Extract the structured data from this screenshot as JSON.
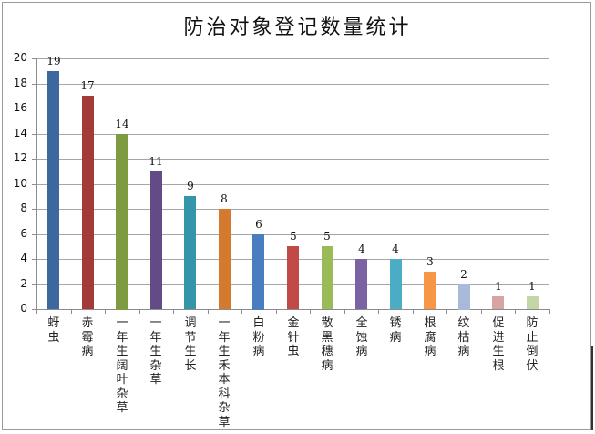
{
  "chart_data": {
    "type": "bar",
    "title": "防治对象登记数量统计",
    "xlabel": "",
    "ylabel": "",
    "ylim": [
      0,
      20
    ],
    "yticks": [
      0,
      2,
      4,
      6,
      8,
      10,
      12,
      14,
      16,
      18,
      20
    ],
    "grid": true,
    "legend": "none",
    "categories": [
      "蚜虫",
      "赤霉病",
      "一年生阔叶杂草",
      "一年生杂草",
      "调节生长",
      "一年生禾本科杂草",
      "白粉病",
      "金针虫",
      "散黑穗病",
      "全蚀病",
      "锈病",
      "根腐病",
      "纹枯病",
      "促进生根",
      "防止倒伏"
    ],
    "values": [
      19,
      17,
      14,
      11,
      9,
      8,
      6,
      5,
      5,
      4,
      4,
      3,
      2,
      1,
      1
    ],
    "colors": [
      "#3c679f",
      "#a23b38",
      "#7f9b40",
      "#634b87",
      "#3494a9",
      "#d47a2e",
      "#4a7cc0",
      "#c14a47",
      "#9bbb59",
      "#7b62a3",
      "#4bacc6",
      "#f79646",
      "#a9b9d9",
      "#d9a3a2",
      "#c4d5a6"
    ],
    "data_labels": [
      "19",
      "17",
      "14",
      "11",
      "9",
      "8",
      "6",
      "5",
      "5",
      "4",
      "4",
      "3",
      "2",
      "1",
      "1"
    ]
  }
}
